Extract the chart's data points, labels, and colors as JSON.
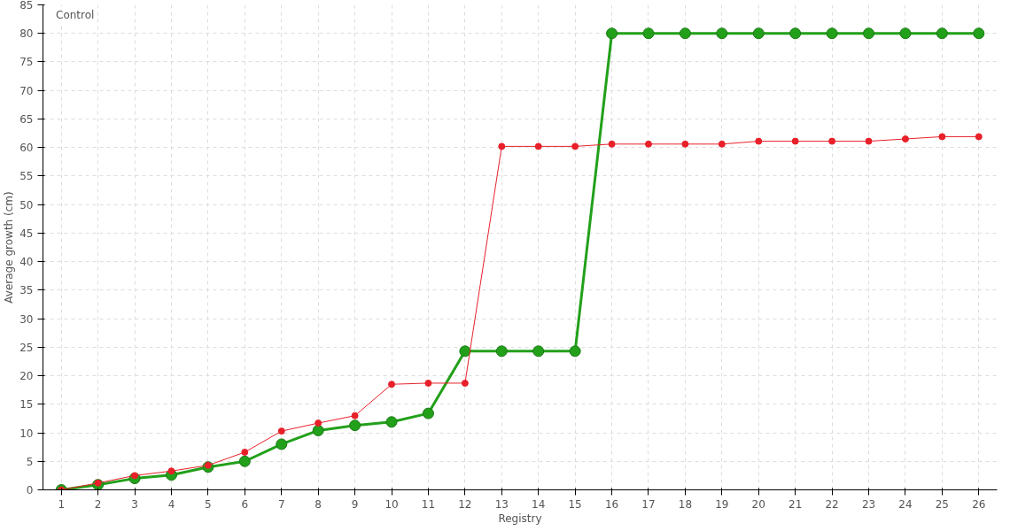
{
  "chart_data": {
    "type": "line",
    "xlabel": "Registry",
    "ylabel": "Average growth (cm)",
    "x": [
      1,
      2,
      3,
      4,
      5,
      6,
      7,
      8,
      9,
      10,
      11,
      12,
      13,
      14,
      15,
      16,
      17,
      18,
      19,
      20,
      21,
      22,
      23,
      24,
      25,
      26
    ],
    "xlim": [
      0.5,
      26.5
    ],
    "xticks": [
      1,
      2,
      3,
      4,
      5,
      6,
      7,
      8,
      9,
      10,
      11,
      12,
      13,
      14,
      15,
      16,
      17,
      18,
      19,
      20,
      21,
      22,
      23,
      24,
      25,
      26
    ],
    "ylim": [
      0,
      85
    ],
    "yticks": [
      0,
      5,
      10,
      15,
      20,
      25,
      30,
      35,
      40,
      45,
      50,
      55,
      60,
      65,
      70,
      75,
      80,
      85
    ],
    "grid": true,
    "legend": "top left",
    "marker": "circle",
    "line_style": "solid",
    "series": [
      {
        "name": "Control",
        "color": "#e8202a",
        "values": [
          0,
          1.2,
          2.5,
          3.3,
          4.3,
          6.6,
          10.3,
          11.7,
          13,
          18.5,
          18.7,
          18.7,
          60.2,
          60.2,
          60.2,
          60.6,
          60.6,
          60.6,
          60.6,
          61.1,
          61.1,
          61.1,
          61.1,
          61.5,
          61.9,
          61.9
        ]
      },
      {
        "color": "#22a01a",
        "values": [
          0,
          0.9,
          2,
          2.6,
          4,
          5,
          8,
          10.4,
          11.3,
          11.9,
          13.4,
          24.3,
          24.3,
          24.3,
          24.3,
          80,
          80,
          80,
          80,
          80,
          80,
          80,
          80,
          80,
          80,
          80
        ]
      }
    ]
  }
}
